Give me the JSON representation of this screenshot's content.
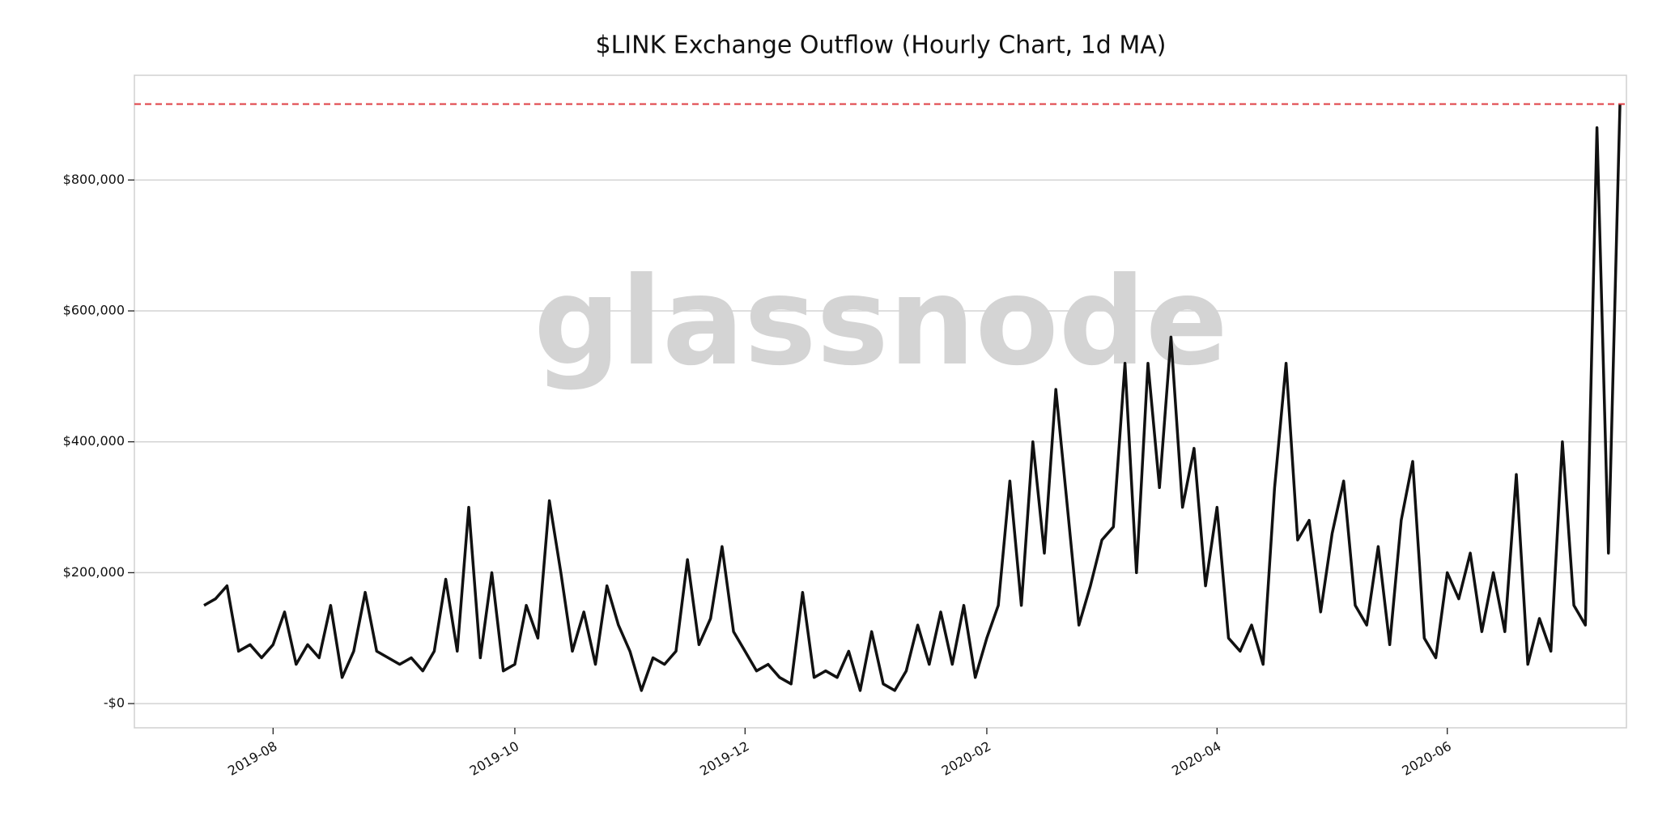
{
  "chart_data": {
    "type": "line",
    "title": "$LINK Exchange Outflow (Hourly Chart, 1d MA)",
    "watermark": "glassnode",
    "categories": [
      null,
      null,
      null,
      null,
      null,
      null,
      "2019-08",
      null,
      null,
      null,
      null,
      null,
      null,
      null,
      null,
      null,
      null,
      null,
      null,
      null,
      null,
      null,
      null,
      null,
      null,
      null,
      null,
      "2019-10",
      null,
      null,
      null,
      null,
      null,
      null,
      null,
      null,
      null,
      null,
      null,
      null,
      null,
      null,
      null,
      null,
      null,
      null,
      null,
      "2019-12",
      null,
      null,
      null,
      null,
      null,
      null,
      null,
      null,
      null,
      null,
      null,
      null,
      null,
      null,
      null,
      null,
      null,
      null,
      null,
      null,
      "2020-02",
      null,
      null,
      null,
      null,
      null,
      null,
      null,
      null,
      null,
      null,
      null,
      null,
      null,
      null,
      null,
      null,
      null,
      null,
      null,
      "2020-04",
      null,
      null,
      null,
      null,
      null,
      null,
      null,
      null,
      null,
      null,
      null,
      null,
      null,
      null,
      null,
      null,
      null,
      null,
      null,
      "2020-06",
      null,
      null,
      null,
      null,
      null,
      null,
      null,
      null,
      null,
      null,
      null,
      null,
      null,
      null,
      null
    ],
    "series": [
      {
        "color": "#111111",
        "values": [
          150000,
          160000,
          180000,
          80000,
          90000,
          70000,
          90000,
          140000,
          60000,
          90000,
          70000,
          150000,
          40000,
          80000,
          170000,
          80000,
          70000,
          60000,
          70000,
          50000,
          80000,
          190000,
          80000,
          300000,
          70000,
          200000,
          50000,
          60000,
          150000,
          100000,
          310000,
          200000,
          80000,
          140000,
          60000,
          180000,
          120000,
          80000,
          20000,
          70000,
          60000,
          80000,
          220000,
          90000,
          130000,
          240000,
          110000,
          80000,
          50000,
          60000,
          40000,
          30000,
          170000,
          40000,
          50000,
          40000,
          80000,
          20000,
          110000,
          30000,
          20000,
          50000,
          120000,
          60000,
          140000,
          60000,
          150000,
          40000,
          100000,
          150000,
          340000,
          150000,
          400000,
          230000,
          480000,
          300000,
          120000,
          180000,
          250000,
          270000,
          520000,
          200000,
          520000,
          330000,
          560000,
          300000,
          390000,
          180000,
          300000,
          100000,
          80000,
          120000,
          60000,
          330000,
          520000,
          250000,
          280000,
          140000,
          260000,
          340000,
          150000,
          120000,
          240000,
          90000,
          280000,
          370000,
          100000,
          70000,
          200000,
          160000,
          230000,
          110000,
          200000,
          110000,
          350000,
          60000,
          130000,
          80000,
          400000,
          150000,
          120000,
          880000,
          230000,
          915000
        ]
      }
    ],
    "reference_line": {
      "value": 916000,
      "color": "#e0474c"
    },
    "ylim": [
      -37000,
      960000
    ],
    "yticks": [
      {
        "value": 0,
        "label": "-$0"
      },
      {
        "value": 200000,
        "label": "$200,000"
      },
      {
        "value": 400000,
        "label": "$400,000"
      },
      {
        "value": 600000,
        "label": "$600,000"
      },
      {
        "value": 800000,
        "label": "$800,000"
      }
    ],
    "grid": true
  }
}
